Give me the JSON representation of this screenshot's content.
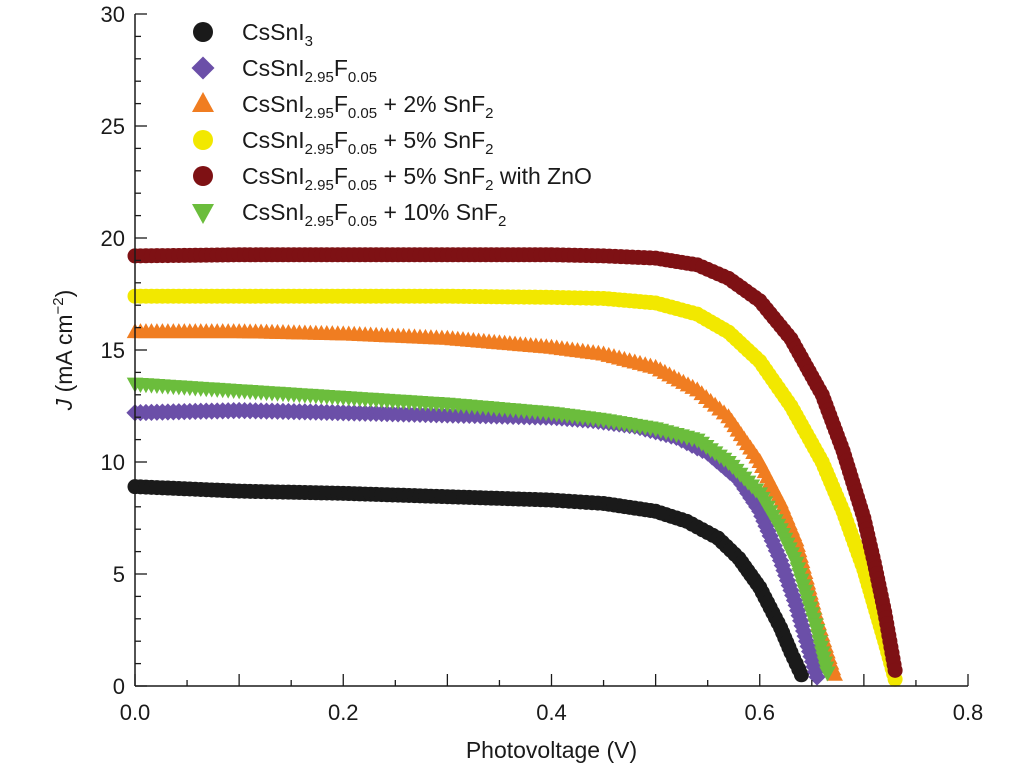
{
  "chart_data": {
    "type": "scatter",
    "title": "",
    "xlabel": "Photovoltage (V)",
    "ylabel": {
      "italic": "J",
      "rest": " (mA cm",
      "sup": "−2",
      "close": ")"
    },
    "xlim": [
      0,
      0.8
    ],
    "ylim": [
      0,
      30
    ],
    "x_ticks": [
      "0.0",
      "0.2",
      "0.4",
      "0.6",
      "0.8"
    ],
    "x_tick_values": [
      0,
      0.2,
      0.4,
      0.6,
      0.8
    ],
    "y_ticks": [
      "0",
      "5",
      "10",
      "15",
      "20",
      "25",
      "30"
    ],
    "y_tick_values": [
      0,
      5,
      10,
      15,
      20,
      25,
      30
    ],
    "grid": false,
    "legend_position": "top-left",
    "series": [
      {
        "id": "cssni3",
        "legend": [
          {
            "t": "CsSnI"
          },
          {
            "t": "3",
            "s": "sub"
          }
        ],
        "marker": "circle",
        "color": "#1a1a1a",
        "points": [
          [
            0,
            8.9
          ],
          [
            0.1,
            8.7
          ],
          [
            0.2,
            8.6
          ],
          [
            0.3,
            8.45
          ],
          [
            0.4,
            8.3
          ],
          [
            0.45,
            8.15
          ],
          [
            0.5,
            7.8
          ],
          [
            0.53,
            7.35
          ],
          [
            0.56,
            6.6
          ],
          [
            0.58,
            5.7
          ],
          [
            0.6,
            4.4
          ],
          [
            0.61,
            3.5
          ],
          [
            0.62,
            2.6
          ],
          [
            0.63,
            1.5
          ],
          [
            0.64,
            0.5
          ]
        ]
      },
      {
        "id": "f005",
        "legend": [
          {
            "t": "CsSnI"
          },
          {
            "t": "2.95",
            "s": "sub"
          },
          {
            "t": "F"
          },
          {
            "t": "0.05",
            "s": "sub"
          }
        ],
        "marker": "diamond",
        "color": "#6b4fa8",
        "points": [
          [
            0,
            12.2
          ],
          [
            0.1,
            12.3
          ],
          [
            0.2,
            12.2
          ],
          [
            0.3,
            12.1
          ],
          [
            0.4,
            12.0
          ],
          [
            0.44,
            11.85
          ],
          [
            0.48,
            11.6
          ],
          [
            0.52,
            11.1
          ],
          [
            0.55,
            10.4
          ],
          [
            0.58,
            9.2
          ],
          [
            0.6,
            7.8
          ],
          [
            0.62,
            5.6
          ],
          [
            0.635,
            3.6
          ],
          [
            0.645,
            2.0
          ],
          [
            0.655,
            0.4
          ]
        ]
      },
      {
        "id": "snf2-2",
        "legend": [
          {
            "t": "CsSnI"
          },
          {
            "t": "2.95",
            "s": "sub"
          },
          {
            "t": "F"
          },
          {
            "t": "0.05",
            "s": "sub"
          },
          {
            "t": " + 2% SnF"
          },
          {
            "t": "2",
            "s": "sub"
          }
        ],
        "marker": "triangle-up",
        "color": "#f07d21",
        "points": [
          [
            0,
            15.8
          ],
          [
            0.1,
            15.8
          ],
          [
            0.2,
            15.7
          ],
          [
            0.3,
            15.5
          ],
          [
            0.35,
            15.3
          ],
          [
            0.4,
            15.1
          ],
          [
            0.45,
            14.8
          ],
          [
            0.5,
            14.2
          ],
          [
            0.54,
            13.2
          ],
          [
            0.57,
            12.0
          ],
          [
            0.6,
            10.0
          ],
          [
            0.62,
            8.2
          ],
          [
            0.635,
            6.5
          ],
          [
            0.645,
            4.8
          ],
          [
            0.655,
            3.0
          ],
          [
            0.665,
            1.5
          ],
          [
            0.672,
            0.5
          ]
        ]
      },
      {
        "id": "snf2-5",
        "legend": [
          {
            "t": "CsSnI"
          },
          {
            "t": "2.95",
            "s": "sub"
          },
          {
            "t": "F"
          },
          {
            "t": "0.05",
            "s": "sub"
          },
          {
            "t": " + 5% SnF"
          },
          {
            "t": "2",
            "s": "sub"
          }
        ],
        "marker": "circle",
        "color": "#f2e800",
        "points": [
          [
            0,
            17.4
          ],
          [
            0.1,
            17.4
          ],
          [
            0.2,
            17.4
          ],
          [
            0.3,
            17.4
          ],
          [
            0.4,
            17.35
          ],
          [
            0.45,
            17.3
          ],
          [
            0.5,
            17.1
          ],
          [
            0.54,
            16.6
          ],
          [
            0.57,
            15.8
          ],
          [
            0.6,
            14.5
          ],
          [
            0.63,
            12.5
          ],
          [
            0.66,
            10.0
          ],
          [
            0.68,
            7.8
          ],
          [
            0.7,
            5.2
          ],
          [
            0.71,
            3.6
          ],
          [
            0.72,
            2.0
          ],
          [
            0.73,
            0.3
          ]
        ]
      },
      {
        "id": "snf2-5-zno",
        "legend": [
          {
            "t": "CsSnI"
          },
          {
            "t": "2.95",
            "s": "sub"
          },
          {
            "t": "F"
          },
          {
            "t": "0.05",
            "s": "sub"
          },
          {
            "t": " + 5% SnF"
          },
          {
            "t": "2",
            "s": "sub"
          },
          {
            "t": " with ZnO"
          }
        ],
        "marker": "circle",
        "color": "#7e1114",
        "points": [
          [
            0,
            19.2
          ],
          [
            0.1,
            19.25
          ],
          [
            0.2,
            19.25
          ],
          [
            0.3,
            19.25
          ],
          [
            0.4,
            19.25
          ],
          [
            0.45,
            19.2
          ],
          [
            0.5,
            19.1
          ],
          [
            0.54,
            18.8
          ],
          [
            0.57,
            18.2
          ],
          [
            0.6,
            17.2
          ],
          [
            0.63,
            15.5
          ],
          [
            0.66,
            13.0
          ],
          [
            0.68,
            10.5
          ],
          [
            0.7,
            7.5
          ],
          [
            0.71,
            5.5
          ],
          [
            0.72,
            3.3
          ],
          [
            0.725,
            2.0
          ],
          [
            0.73,
            0.7
          ]
        ]
      },
      {
        "id": "snf2-10",
        "legend": [
          {
            "t": "CsSnI"
          },
          {
            "t": "2.95",
            "s": "sub"
          },
          {
            "t": "F"
          },
          {
            "t": "0.05",
            "s": "sub"
          },
          {
            "t": " + 10% SnF"
          },
          {
            "t": "2",
            "s": "sub"
          }
        ],
        "marker": "triangle-down",
        "color": "#6bbd3c",
        "points": [
          [
            0,
            13.5
          ],
          [
            0.1,
            13.2
          ],
          [
            0.2,
            12.9
          ],
          [
            0.3,
            12.6
          ],
          [
            0.4,
            12.2
          ],
          [
            0.45,
            11.9
          ],
          [
            0.5,
            11.5
          ],
          [
            0.54,
            11.0
          ],
          [
            0.57,
            10.0
          ],
          [
            0.6,
            8.6
          ],
          [
            0.62,
            7.0
          ],
          [
            0.635,
            5.5
          ],
          [
            0.645,
            4.0
          ],
          [
            0.655,
            2.5
          ],
          [
            0.66,
            1.5
          ],
          [
            0.665,
            0.6
          ]
        ]
      }
    ]
  }
}
